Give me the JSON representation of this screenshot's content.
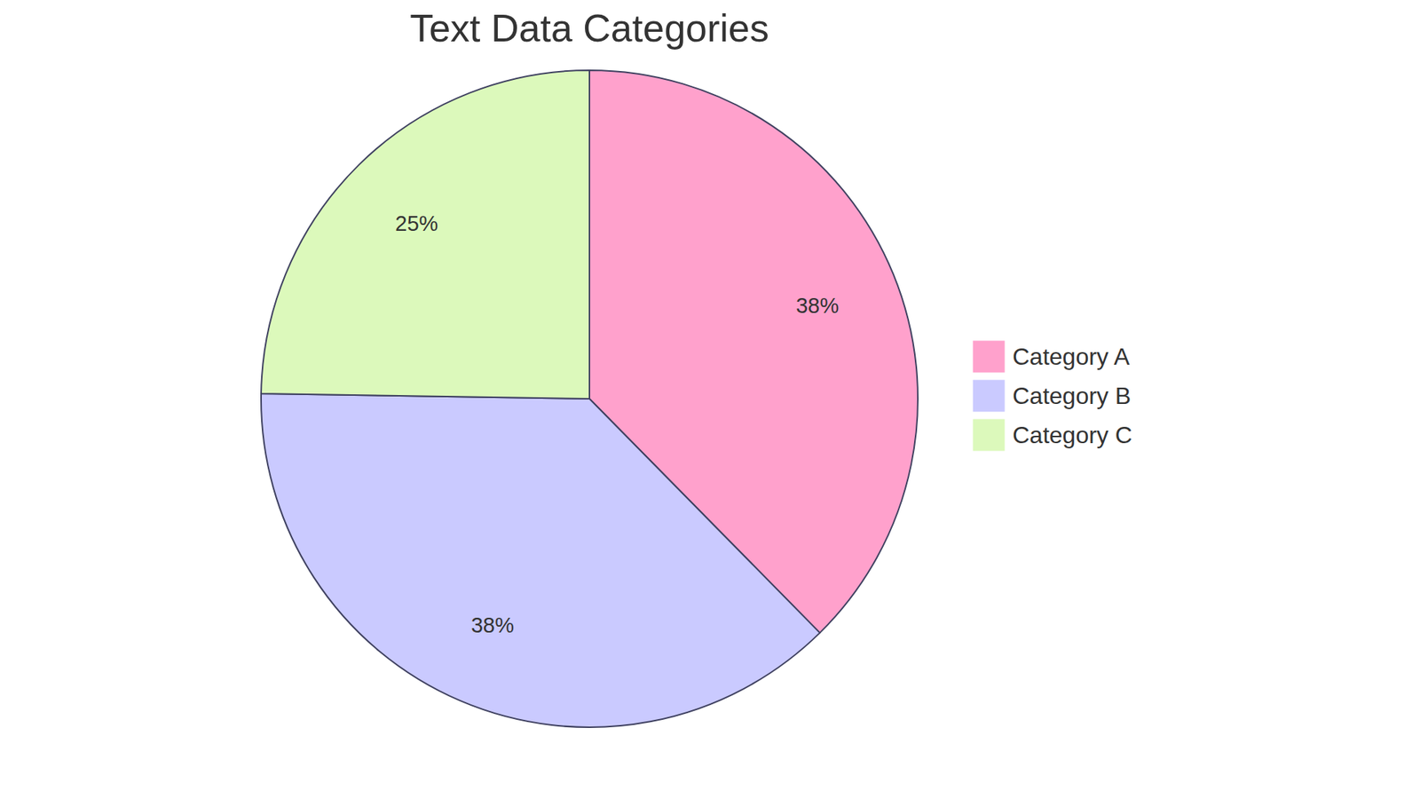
{
  "chart_data": {
    "type": "pie",
    "title": "Text Data Categories",
    "categories": [
      "Category A",
      "Category B",
      "Category C"
    ],
    "values": [
      38,
      38,
      25
    ],
    "value_labels": [
      "38%",
      "38%",
      "25%"
    ],
    "colors": [
      "#ffa1cc",
      "#cacaff",
      "#dcf9bb"
    ],
    "data_labels": true,
    "legend": "right"
  }
}
